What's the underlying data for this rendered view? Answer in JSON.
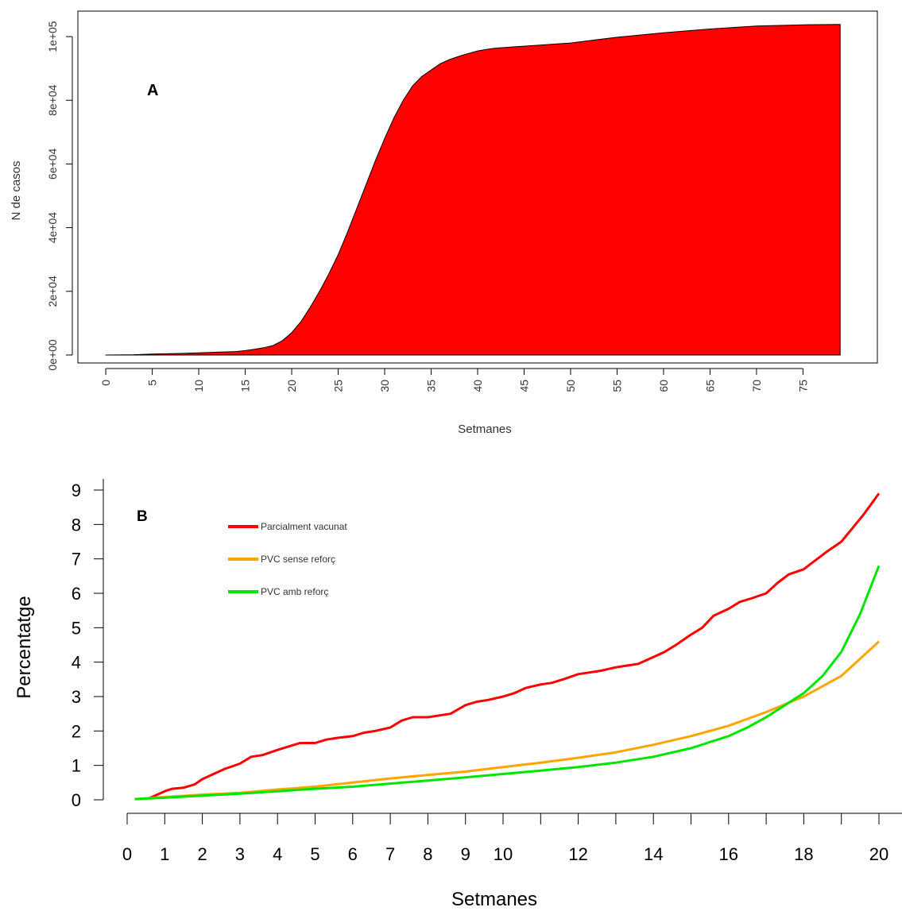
{
  "chart_data": [
    {
      "type": "area",
      "panel_label": "A",
      "xlabel": "Setmanes",
      "ylabel": "N de casos",
      "xlim": [
        -3,
        83
      ],
      "ylim": [
        -2500,
        108000
      ],
      "x_ticks": [
        "0",
        "5",
        "10",
        "15",
        "20",
        "25",
        "30",
        "35",
        "40",
        "45",
        "50",
        "55",
        "60",
        "65",
        "70",
        "75"
      ],
      "x_tick_values": [
        0,
        5,
        10,
        15,
        20,
        25,
        30,
        35,
        40,
        45,
        50,
        55,
        60,
        65,
        70,
        75
      ],
      "y_ticks": [
        "0e+00",
        "2e+04",
        "4e+04",
        "6e+04",
        "8e+04",
        "1e+05"
      ],
      "y_tick_values": [
        0,
        20000,
        40000,
        60000,
        80000,
        100000
      ],
      "fill_color": "#ff0000",
      "x": [
        0,
        3,
        5,
        8,
        10,
        12,
        14,
        15,
        16,
        17,
        18,
        19,
        20,
        21,
        22,
        23,
        24,
        25,
        26,
        27,
        28,
        29,
        30,
        31,
        32,
        33,
        34,
        35,
        36,
        37,
        38,
        39,
        40,
        41,
        42,
        43,
        44,
        45,
        50,
        55,
        60,
        65,
        70,
        75,
        79
      ],
      "y": [
        0,
        100,
        300,
        500,
        700,
        900,
        1100,
        1400,
        1800,
        2300,
        3000,
        4500,
        7000,
        10500,
        15000,
        20000,
        25500,
        31500,
        38500,
        46000,
        53500,
        61000,
        68000,
        74500,
        80000,
        84500,
        87500,
        89500,
        91500,
        92800,
        93800,
        94700,
        95500,
        96000,
        96400,
        96600,
        96800,
        97000,
        98000,
        99800,
        101200,
        102400,
        103300,
        103700,
        103800
      ]
    },
    {
      "type": "line",
      "panel_label": "B",
      "xlabel": "Setmanes",
      "ylabel": "Percentatge",
      "xlim": [
        0,
        20.6
      ],
      "ylim": [
        0,
        9.2
      ],
      "x_ticks": [
        "0",
        "1",
        "2",
        "3",
        "4",
        "5",
        "6",
        "7",
        "8",
        "9",
        "10",
        "12",
        "14",
        "16",
        "18",
        "20"
      ],
      "x_tick_values": [
        0,
        1,
        2,
        3,
        4,
        5,
        6,
        7,
        8,
        9,
        10,
        12,
        14,
        16,
        18,
        20
      ],
      "y_ticks": [
        "0",
        "1",
        "2",
        "3",
        "4",
        "5",
        "6",
        "7",
        "8",
        "9"
      ],
      "y_tick_values": [
        0,
        1,
        2,
        3,
        4,
        5,
        6,
        7,
        8,
        9
      ],
      "legend_position": "top-left",
      "series": [
        {
          "name": "Parcialment vacunat",
          "color": "#ff0000",
          "x": [
            0.6,
            0.8,
            1.0,
            1.2,
            1.5,
            1.8,
            2.0,
            2.3,
            2.6,
            3.0,
            3.3,
            3.6,
            4.0,
            4.3,
            4.6,
            5.0,
            5.3,
            5.6,
            6.0,
            6.3,
            6.6,
            7.0,
            7.3,
            7.6,
            8.0,
            8.3,
            8.6,
            9.0,
            9.3,
            9.6,
            10.0,
            10.3,
            10.6,
            11.0,
            11.3,
            11.6,
            12.0,
            12.3,
            12.6,
            13.0,
            13.3,
            13.6,
            14.0,
            14.3,
            14.6,
            15.0,
            15.3,
            15.6,
            16.0,
            16.3,
            16.6,
            17.0,
            17.3,
            17.6,
            18.0,
            18.3,
            18.6,
            19.0,
            19.3,
            19.6,
            20.0
          ],
          "y": [
            0.05,
            0.15,
            0.25,
            0.32,
            0.35,
            0.45,
            0.6,
            0.75,
            0.9,
            1.05,
            1.25,
            1.3,
            1.45,
            1.55,
            1.65,
            1.65,
            1.75,
            1.8,
            1.85,
            1.95,
            2.0,
            2.1,
            2.3,
            2.4,
            2.4,
            2.45,
            2.5,
            2.75,
            2.85,
            2.9,
            3.0,
            3.1,
            3.25,
            3.35,
            3.4,
            3.5,
            3.65,
            3.7,
            3.75,
            3.85,
            3.9,
            3.95,
            4.15,
            4.3,
            4.5,
            4.8,
            5.0,
            5.35,
            5.55,
            5.75,
            5.85,
            6.0,
            6.3,
            6.55,
            6.7,
            6.95,
            7.2,
            7.5,
            7.9,
            8.3,
            8.9
          ]
        },
        {
          "name": "PVC sense reforç",
          "color": "#ffa500",
          "x": [
            0.2,
            1,
            2,
            3,
            4,
            5,
            6,
            7,
            8,
            9,
            10,
            11,
            12,
            13,
            14,
            15,
            16,
            17,
            18,
            19,
            20
          ],
          "y": [
            0.02,
            0.08,
            0.15,
            0.2,
            0.3,
            0.38,
            0.5,
            0.62,
            0.72,
            0.82,
            0.95,
            1.08,
            1.22,
            1.38,
            1.6,
            1.85,
            2.15,
            2.55,
            3.0,
            3.6,
            4.6
          ]
        },
        {
          "name": "PVC amb reforç",
          "color": "#00e600",
          "x": [
            0.2,
            1,
            2,
            3,
            4,
            5,
            6,
            7,
            8,
            9,
            10,
            11,
            12,
            13,
            14,
            15,
            16,
            16.5,
            17,
            17.5,
            18,
            18.5,
            19,
            19.5,
            20
          ],
          "y": [
            0.02,
            0.06,
            0.12,
            0.18,
            0.25,
            0.32,
            0.38,
            0.47,
            0.56,
            0.65,
            0.75,
            0.85,
            0.95,
            1.08,
            1.25,
            1.5,
            1.85,
            2.1,
            2.4,
            2.75,
            3.1,
            3.6,
            4.3,
            5.4,
            6.8
          ]
        }
      ]
    }
  ]
}
